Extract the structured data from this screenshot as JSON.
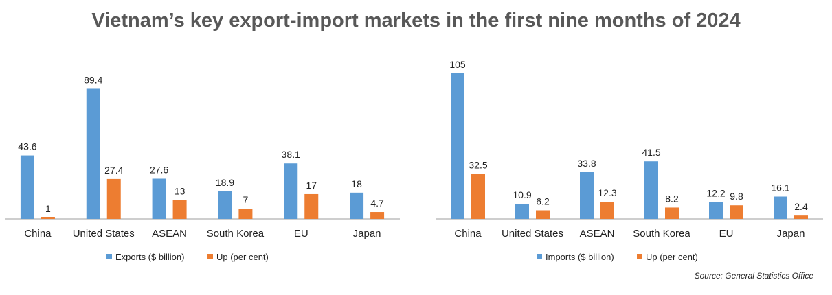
{
  "title": "Vietnam’s key export-import markets in the first nine months of 2024",
  "source": "Source: General Statistics Office",
  "colors": {
    "primary": "#5b9bd5",
    "secondary": "#ed7d31",
    "axis": "#9e9e9e"
  },
  "chart_data": [
    {
      "type": "bar",
      "categories": [
        "China",
        "United States",
        "ASEAN",
        "South Korea",
        "EU",
        "Japan"
      ],
      "series": [
        {
          "name": "Exports ($ billion)",
          "values": [
            43.6,
            89.4,
            27.6,
            18.9,
            38.1,
            18
          ],
          "labels": [
            "43.6",
            "89.4",
            "27.6",
            "18.9",
            "38.1",
            "18"
          ]
        },
        {
          "name": "Up (per cent)",
          "values": [
            1,
            27.4,
            13,
            7,
            17,
            4.7
          ],
          "labels": [
            "1",
            "27.4",
            "13",
            "7",
            "17",
            "4.7"
          ]
        }
      ],
      "ylim": [
        0,
        100
      ],
      "grid": false,
      "legend": "bottom"
    },
    {
      "type": "bar",
      "categories": [
        "China",
        "United States",
        "ASEAN",
        "South Korea",
        "EU",
        "Japan"
      ],
      "series": [
        {
          "name": "Imports ($ billion)",
          "values": [
            105,
            10.9,
            33.8,
            41.5,
            12.2,
            16.1
          ],
          "labels": [
            "105",
            "10.9",
            "33.8",
            "41.5",
            "12.2",
            "16.1"
          ]
        },
        {
          "name": "Up (per cent)",
          "values": [
            32.5,
            6.2,
            12.3,
            8.2,
            9.8,
            2.4
          ],
          "labels": [
            "32.5",
            "6.2",
            "12.3",
            "8.2",
            "9.8",
            "2.4"
          ]
        }
      ],
      "ylim": [
        0,
        105
      ],
      "grid": false,
      "legend": "bottom"
    }
  ]
}
